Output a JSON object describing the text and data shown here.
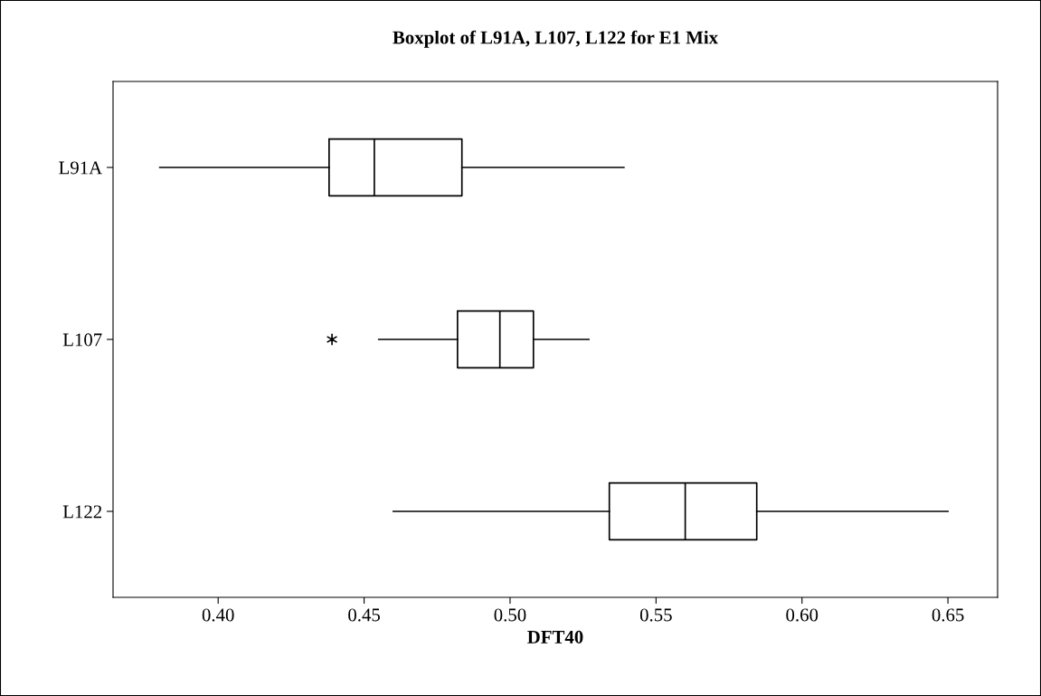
{
  "chart_data": {
    "type": "box",
    "title": "Boxplot of L91A, L107, L122 for E1 Mix",
    "xlabel": "DFT40",
    "orientation": "horizontal",
    "categories": [
      "L91A",
      "L107",
      "L122"
    ],
    "boxes": [
      {
        "low": 0.38,
        "q1": 0.438,
        "median": 0.4535,
        "q3": 0.4835,
        "high": 0.539
      },
      {
        "low": 0.455,
        "q1": 0.482,
        "median": 0.4965,
        "q3": 0.508,
        "high": 0.527,
        "outliers": [
          0.439
        ]
      },
      {
        "low": 0.46,
        "q1": 0.534,
        "median": 0.56,
        "q3": 0.5845,
        "high": 0.65
      }
    ],
    "xlim": [
      0.364,
      0.667
    ],
    "xticks": [
      {
        "value": 0.4,
        "label": "0.40"
      },
      {
        "value": 0.45,
        "label": "0.45"
      },
      {
        "value": 0.5,
        "label": "0.50"
      },
      {
        "value": 0.55,
        "label": "0.55"
      },
      {
        "value": 0.6,
        "label": "0.60"
      },
      {
        "value": 0.65,
        "label": "0.65"
      }
    ],
    "grid": false,
    "legend": false
  }
}
